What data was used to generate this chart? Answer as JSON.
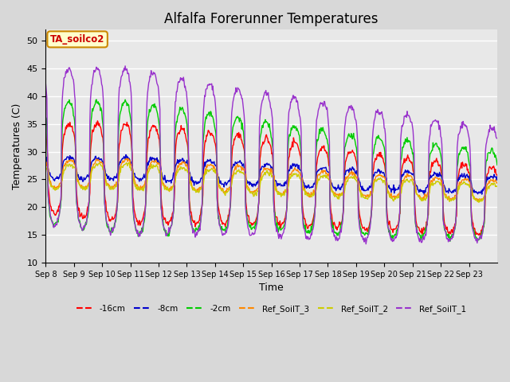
{
  "title": "Alfalfa Forerunner Temperatures",
  "xlabel": "Time",
  "ylabel": "Temperatures (C)",
  "ylim": [
    10,
    52
  ],
  "yticks": [
    10,
    15,
    20,
    25,
    30,
    35,
    40,
    45,
    50
  ],
  "annotation_text": "TA_soilco2",
  "series_colors": {
    "-16cm": "#ff0000",
    "-8cm": "#0000cc",
    "-2cm": "#00cc00",
    "Ref_SoilT_3": "#ff8800",
    "Ref_SoilT_2": "#cccc00",
    "Ref_SoilT_1": "#9933cc"
  },
  "x_tick_labels": [
    "Sep 8",
    "Sep 9",
    "Sep 10",
    "Sep 11",
    "Sep 12",
    "Sep 13",
    "Sep 14",
    "Sep 15",
    "Sep 16",
    "Sep 17",
    "Sep 18",
    "Sep 19",
    "Sep 20",
    "Sep 21",
    "Sep 22",
    "Sep 23"
  ],
  "num_days": 16,
  "pts_per_day": 48,
  "fig_width": 6.4,
  "fig_height": 4.8,
  "dpi": 100,
  "bg_color": "#d8d8d8",
  "plot_bg_color": "#e8e8e8",
  "lw": 1.0
}
